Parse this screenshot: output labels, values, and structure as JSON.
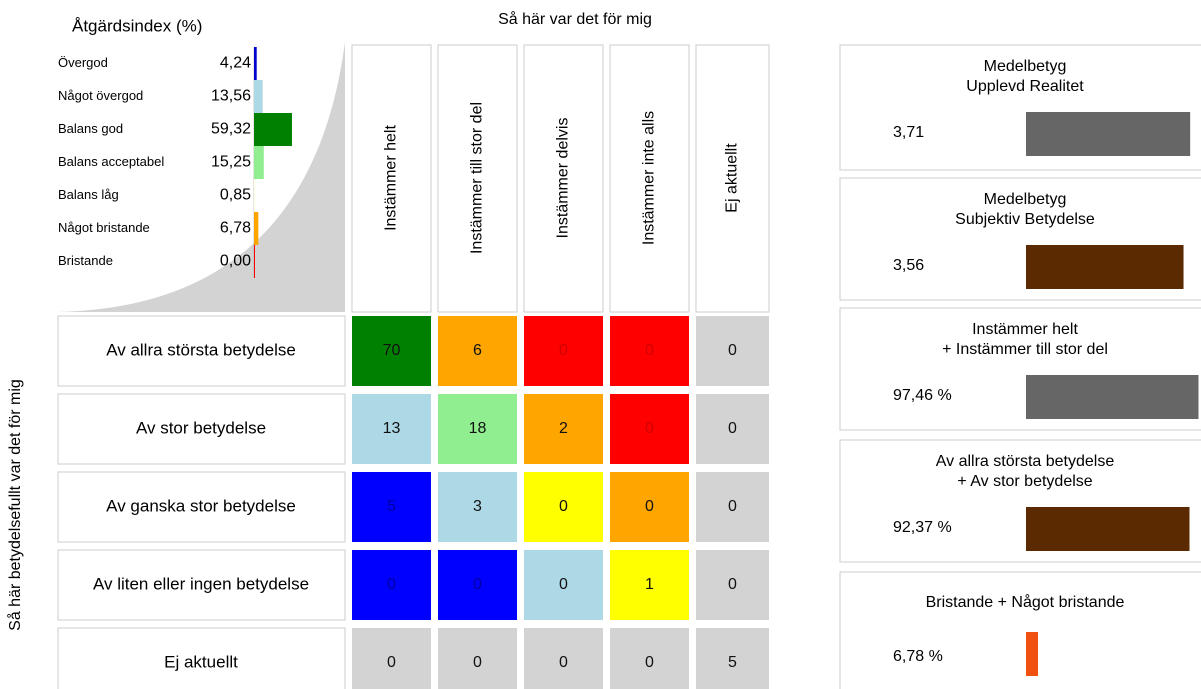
{
  "chart_data": [
    {
      "type": "hbar",
      "title": "Åtgärdsindex (%)",
      "categories": [
        "Övergod",
        "Något övergod",
        "Balans god",
        "Balans acceptabel",
        "Balans låg",
        "Något bristande",
        "Bristande"
      ],
      "values": [
        4.24,
        13.56,
        59.32,
        15.25,
        0.85,
        6.78,
        0
      ],
      "value_labels": [
        "4,24",
        "13,56",
        "59,32",
        "15,25",
        "0,85",
        "6,78",
        "0,00"
      ],
      "colors": [
        "#0000cc",
        "#add8e6",
        "#008000",
        "#90ee90",
        "#ffffe0",
        "#ffa500",
        "#ff0000"
      ],
      "xlim": [
        0,
        100
      ]
    },
    {
      "type": "matrix",
      "title": "Så här var det för mig",
      "ylabel": "Så här betydelsefullt var det för mig",
      "columns": [
        "Instämmer helt",
        "Instämmer till stor del",
        "Instämmer delvis",
        "Instämmer inte alls",
        "Ej aktuellt"
      ],
      "rows": [
        "Av allra största betydelse",
        "Av stor betydelse",
        "Av ganska stor betydelse",
        "Av liten eller ingen betydelse",
        "Ej aktuellt"
      ],
      "values": [
        [
          70,
          6,
          0,
          0,
          0
        ],
        [
          13,
          18,
          2,
          0,
          0
        ],
        [
          5,
          3,
          0,
          0,
          0
        ],
        [
          0,
          0,
          0,
          1,
          0
        ],
        [
          0,
          0,
          0,
          0,
          5
        ]
      ],
      "colors": [
        [
          "#008000",
          "#ffa500",
          "#ff0000",
          "#ff0000",
          "#d3d3d3"
        ],
        [
          "#add8e6",
          "#90ee90",
          "#ffa500",
          "#ff0000",
          "#d3d3d3"
        ],
        [
          "#0000ff",
          "#add8e6",
          "#ffff00",
          "#ffa500",
          "#d3d3d3"
        ],
        [
          "#0000ff",
          "#0000ff",
          "#add8e6",
          "#ffff00",
          "#d3d3d3"
        ],
        [
          "#d3d3d3",
          "#d3d3d3",
          "#d3d3d3",
          "#d3d3d3",
          "#d3d3d3"
        ]
      ]
    },
    {
      "type": "cards",
      "cards": [
        {
          "title": [
            "Medelbetyg",
            "Upplevd Realitet"
          ],
          "value": 3.71,
          "value_label": "3,71",
          "color": "#666666",
          "xlim": [
            0,
            4
          ]
        },
        {
          "title": [
            "Medelbetyg",
            "Subjektiv Betydelse"
          ],
          "value": 3.56,
          "value_label": "3,56",
          "color": "#5c2a00",
          "xlim": [
            0,
            4
          ]
        },
        {
          "title": [
            "Instämmer helt",
            "+ Instämmer till stor del"
          ],
          "value": 97.46,
          "value_label": "97,46 %",
          "color": "#666666",
          "xlim": [
            0,
            100
          ]
        },
        {
          "title": [
            "Av allra största betydelse",
            "+ Av stor betydelse"
          ],
          "value": 92.37,
          "value_label": "92,37 %",
          "color": "#5c2a00",
          "xlim": [
            0,
            100
          ]
        },
        {
          "title": [
            "Bristande + Något bristande"
          ],
          "value": 6.78,
          "value_label": "6,78 %",
          "color": "#f05010",
          "xlim": [
            0,
            100
          ]
        }
      ]
    }
  ]
}
